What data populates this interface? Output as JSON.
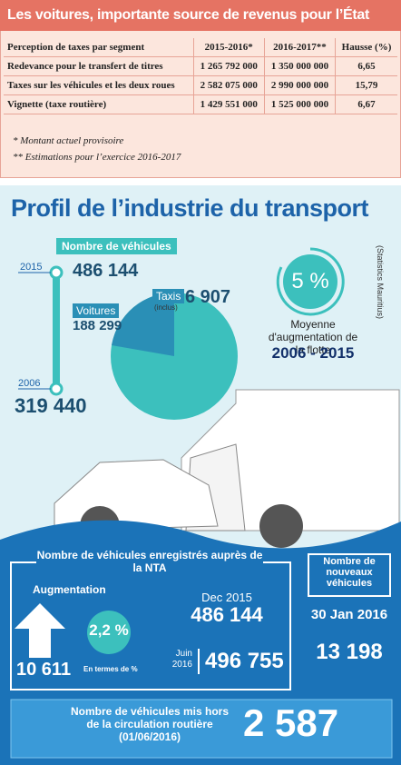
{
  "table_section": {
    "title": "Les voitures, importante source de revenus pour l’État",
    "table": {
      "header": [
        "Perception de taxes par segment",
        "2015-2016*",
        "2016-2017**",
        "Hausse (%)"
      ],
      "rows": [
        [
          "Redevance pour le transfert de titres",
          "1 265 792 000",
          "1 350 000 000",
          "6,65"
        ],
        [
          "Taxes sur les véhicules et les deux  roues",
          "2 582 075 000",
          "2 990 000 000",
          "15,79"
        ],
        [
          "Vignette (taxe routière)",
          "1 429 551 000",
          "1 525 000 000",
          "6,67"
        ]
      ]
    },
    "notes": [
      "* Montant actuel provisoire",
      "** Estimations pour l’exercice 2016-2017"
    ]
  },
  "infographic": {
    "title": "Profil de l’industrie du transport",
    "source": "(Statistics Mauritius)",
    "vehicles": {
      "label": "Nombre de véhicules",
      "year_top": "2015",
      "count_top": "486 144",
      "year_bottom": "2006",
      "count_bottom": "319 440",
      "cars_label": "Voitures",
      "cars_count": "188 299",
      "taxis_label": "Taxis",
      "taxis_note": "(inclus)",
      "taxis_count": "6 907"
    },
    "fleet": {
      "percent": "5 %",
      "caption": "Moyenne d'augmentation de la flotte",
      "period": "2006 - 2015"
    },
    "nta": {
      "title": "Nombre de véhicules enregistrés auprès de la NTA",
      "increase_label": "Augmentation",
      "increase_count": "10 611",
      "percent": "2,2 %",
      "percent_label": "En termes de %",
      "date_1": "Dec 2015",
      "count_1": "486 144",
      "date_2": "Juin 2016",
      "count_2": "496 755"
    },
    "new_vehicles": {
      "title": "Nombre de nouveaux véhicules",
      "date": "30 Jan 2016",
      "count": "13 198"
    },
    "removed": {
      "title": "Nombre de véhicules mis hors de la circulation routière (01/06/2016)",
      "count": "2 587"
    }
  }
}
